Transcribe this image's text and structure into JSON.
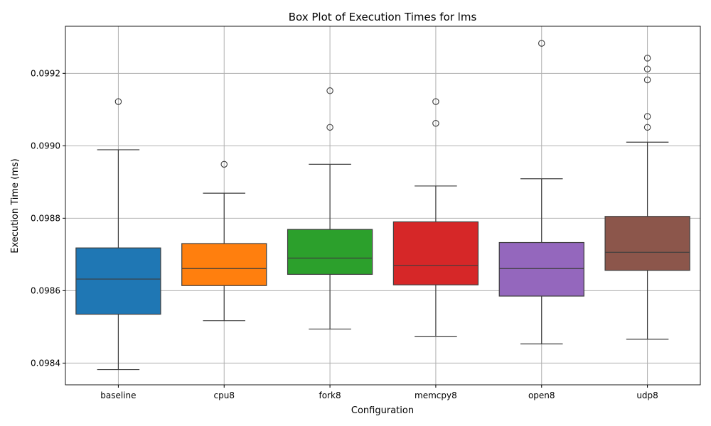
{
  "chart_data": {
    "type": "box",
    "title": "Box Plot of Execution Times for lms",
    "xlabel": "Configuration",
    "ylabel": "Execution Time (ms)",
    "ylim": [
      0.09834,
      0.09933
    ],
    "yticks": [
      0.0984,
      0.0986,
      0.0988,
      0.099,
      0.0992
    ],
    "ytick_labels": [
      "0.0984",
      "0.0986",
      "0.0988",
      "0.0990",
      "0.0992"
    ],
    "grid": true,
    "categories": [
      "baseline",
      "cpu8",
      "fork8",
      "memcpy8",
      "open8",
      "udp8"
    ],
    "colors": [
      "#1f77b4",
      "#ff7f0e",
      "#2ca02c",
      "#d62728",
      "#9467bd",
      "#8c564b"
    ],
    "boxes": [
      {
        "whisker_low": 0.098382,
        "q1": 0.098535,
        "median": 0.098632,
        "q3": 0.098718,
        "whisker_high": 0.098989,
        "fliers": [
          0.099122
        ]
      },
      {
        "whisker_low": 0.098517,
        "q1": 0.098614,
        "median": 0.098661,
        "q3": 0.09873,
        "whisker_high": 0.098869,
        "fliers": [
          0.098949
        ]
      },
      {
        "whisker_low": 0.098494,
        "q1": 0.098645,
        "median": 0.09869,
        "q3": 0.098769,
        "whisker_high": 0.098949,
        "fliers": [
          0.099051,
          0.099152
        ]
      },
      {
        "whisker_low": 0.098474,
        "q1": 0.098616,
        "median": 0.09867,
        "q3": 0.09879,
        "whisker_high": 0.098889,
        "fliers": [
          0.099062,
          0.099122
        ]
      },
      {
        "whisker_low": 0.098453,
        "q1": 0.098585,
        "median": 0.098661,
        "q3": 0.098733,
        "whisker_high": 0.098909,
        "fliers": [
          0.099283
        ]
      },
      {
        "whisker_low": 0.098466,
        "q1": 0.098656,
        "median": 0.098706,
        "q3": 0.098805,
        "whisker_high": 0.09901,
        "fliers": [
          0.099051,
          0.099081,
          0.099182,
          0.099212,
          0.099242
        ]
      }
    ]
  }
}
